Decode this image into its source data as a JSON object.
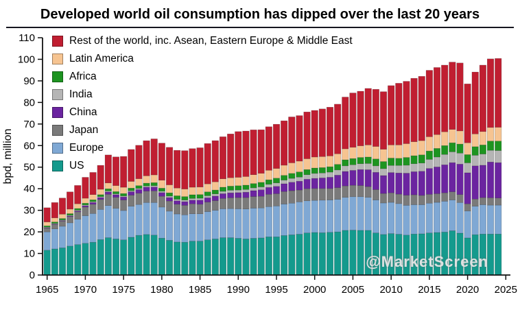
{
  "page": {
    "title": "Developed world oil consumption has dipped over the last 20 years",
    "watermark": "@MarketScreen"
  },
  "chart_data": {
    "type": "bar",
    "stacked": true,
    "title": "Developed world oil consumption has dipped over the last 20 years",
    "xlabel": "",
    "ylabel": "bpd, million",
    "ylim": [
      0,
      110
    ],
    "yticks": [
      0,
      10,
      20,
      30,
      40,
      50,
      60,
      70,
      80,
      90,
      100,
      110
    ],
    "xticks": [
      1965,
      1970,
      1975,
      1980,
      1985,
      1990,
      1995,
      2000,
      2005,
      2010,
      2015,
      2020,
      2025
    ],
    "x_range": [
      1965,
      2024
    ],
    "grid": false,
    "legend_position": "upper-left",
    "series": [
      {
        "name": "US",
        "color": "#149a8d",
        "values": [
          11.5,
          12.1,
          12.6,
          13.4,
          14.1,
          14.7,
          15.2,
          16.4,
          17.3,
          16.7,
          16.3,
          17.5,
          18.4,
          18.8,
          18.5,
          17.1,
          16.1,
          15.3,
          15.2,
          15.7,
          15.7,
          16.3,
          16.7,
          17.3,
          17.3,
          17.0,
          16.7,
          17.0,
          17.2,
          17.7,
          17.7,
          18.3,
          18.6,
          18.9,
          19.5,
          19.7,
          19.6,
          19.8,
          20.0,
          20.7,
          20.8,
          20.7,
          20.7,
          19.5,
          18.8,
          19.2,
          18.9,
          18.5,
          19.0,
          19.1,
          19.5,
          19.7,
          19.9,
          20.5,
          19.4,
          17.2,
          18.7,
          19.0,
          19.0,
          19.0
        ]
      },
      {
        "name": "Europe",
        "color": "#7fa8d4",
        "values": [
          8.5,
          9.3,
          10.0,
          10.8,
          11.8,
          12.8,
          13.3,
          14.0,
          14.9,
          14.2,
          13.6,
          14.4,
          14.3,
          14.8,
          15.1,
          14.4,
          13.5,
          13.0,
          12.7,
          12.7,
          12.7,
          13.1,
          13.3,
          13.4,
          13.5,
          13.7,
          13.9,
          14.0,
          13.9,
          14.0,
          14.3,
          14.6,
          14.7,
          15.0,
          14.9,
          14.9,
          15.1,
          15.0,
          15.1,
          15.3,
          15.5,
          15.6,
          15.3,
          15.3,
          14.6,
          14.5,
          14.2,
          13.8,
          13.6,
          13.5,
          13.8,
          14.0,
          14.3,
          14.3,
          14.2,
          12.5,
          13.2,
          13.6,
          13.4,
          13.4
        ]
      },
      {
        "name": "Japan",
        "color": "#7a7a7a",
        "values": [
          1.7,
          2.0,
          2.4,
          2.9,
          3.4,
          4.0,
          4.3,
          4.6,
          5.2,
          5.1,
          4.9,
          5.1,
          5.2,
          5.3,
          5.4,
          5.0,
          4.7,
          4.5,
          4.4,
          4.6,
          4.4,
          4.4,
          4.5,
          4.8,
          5.0,
          5.2,
          5.3,
          5.4,
          5.4,
          5.7,
          5.7,
          5.8,
          5.8,
          5.5,
          5.6,
          5.5,
          5.4,
          5.3,
          5.4,
          5.3,
          5.3,
          5.2,
          5.0,
          4.8,
          4.4,
          4.4,
          4.4,
          4.7,
          4.6,
          4.3,
          4.1,
          4.0,
          3.9,
          3.8,
          3.7,
          3.3,
          3.3,
          3.3,
          3.4,
          3.3
        ]
      },
      {
        "name": "China",
        "color": "#6b24a0",
        "values": [
          0.2,
          0.25,
          0.25,
          0.3,
          0.4,
          0.6,
          0.8,
          0.9,
          1.1,
          1.2,
          1.4,
          1.6,
          1.7,
          1.8,
          1.8,
          1.7,
          1.6,
          1.6,
          1.7,
          1.7,
          1.9,
          2.0,
          2.1,
          2.2,
          2.3,
          2.3,
          2.5,
          2.7,
          3.0,
          3.2,
          3.4,
          3.6,
          3.9,
          4.1,
          4.4,
          4.7,
          4.9,
          5.2,
          5.8,
          6.7,
          6.9,
          7.4,
          7.8,
          8.0,
          8.3,
          9.4,
          9.8,
          10.2,
          10.7,
          11.2,
          12.0,
          12.4,
          13.0,
          13.5,
          14.1,
          14.4,
          15.4,
          15.0,
          16.6,
          16.4
        ]
      },
      {
        "name": "India",
        "color": "#b5b5b5",
        "values": [
          0.3,
          0.3,
          0.3,
          0.35,
          0.38,
          0.4,
          0.42,
          0.45,
          0.47,
          0.46,
          0.48,
          0.5,
          0.54,
          0.58,
          0.62,
          0.65,
          0.7,
          0.72,
          0.76,
          0.8,
          0.9,
          0.95,
          1.0,
          1.1,
          1.2,
          1.2,
          1.25,
          1.3,
          1.35,
          1.45,
          1.6,
          1.7,
          1.8,
          1.9,
          2.1,
          2.3,
          2.3,
          2.4,
          2.4,
          2.6,
          2.6,
          2.7,
          2.9,
          3.0,
          3.2,
          3.3,
          3.5,
          3.7,
          3.7,
          3.8,
          4.2,
          4.6,
          4.8,
          5.0,
          5.1,
          4.6,
          4.9,
          5.2,
          5.4,
          5.6
        ]
      },
      {
        "name": "Africa",
        "color": "#1d9420",
        "values": [
          0.6,
          0.65,
          0.65,
          0.7,
          0.75,
          0.8,
          0.85,
          0.9,
          1.0,
          1.0,
          1.1,
          1.2,
          1.3,
          1.3,
          1.4,
          1.4,
          1.5,
          1.6,
          1.6,
          1.7,
          1.7,
          1.8,
          1.8,
          1.9,
          1.9,
          2.0,
          2.0,
          2.0,
          2.1,
          2.1,
          2.2,
          2.2,
          2.3,
          2.4,
          2.4,
          2.5,
          2.5,
          2.5,
          2.6,
          2.8,
          2.9,
          2.9,
          3.0,
          3.2,
          3.3,
          3.4,
          3.3,
          3.6,
          3.7,
          3.8,
          3.9,
          4.0,
          4.1,
          4.2,
          4.2,
          3.8,
          4.0,
          4.2,
          4.3,
          4.4
        ]
      },
      {
        "name": "Latin America",
        "color": "#f6c491",
        "values": [
          1.8,
          1.9,
          2.0,
          2.1,
          2.2,
          2.3,
          2.4,
          2.5,
          2.7,
          2.8,
          2.9,
          3.1,
          3.2,
          3.4,
          3.6,
          3.7,
          3.7,
          3.6,
          3.5,
          3.5,
          3.5,
          3.7,
          3.8,
          3.9,
          3.9,
          3.9,
          4.0,
          4.1,
          4.2,
          4.4,
          4.5,
          4.7,
          4.9,
          5.0,
          5.0,
          5.1,
          5.1,
          5.0,
          4.9,
          5.1,
          5.2,
          5.4,
          5.6,
          5.8,
          5.7,
          6.1,
          6.2,
          6.4,
          6.5,
          6.6,
          6.6,
          6.4,
          6.4,
          6.2,
          6.1,
          5.5,
          5.9,
          6.2,
          6.3,
          6.4
        ]
      },
      {
        "name": "Rest of the world, inc. Asean, Eastern Europe & Middle East",
        "color": "#c01e31",
        "values": [
          6.6,
          7.1,
          7.5,
          8.0,
          8.5,
          9.7,
          10.3,
          11.1,
          13.0,
          13.3,
          14.3,
          14.8,
          15.5,
          16.3,
          16.7,
          17.2,
          17.4,
          17.5,
          17.8,
          17.9,
          18.2,
          18.7,
          19.1,
          19.5,
          20.3,
          21.2,
          21.1,
          20.8,
          20.2,
          20.2,
          20.5,
          20.6,
          21.3,
          21.1,
          21.7,
          21.6,
          22.1,
          22.6,
          23.0,
          24.0,
          25.2,
          25.3,
          26.2,
          26.5,
          26.7,
          27.5,
          28.6,
          28.9,
          29.4,
          29.8,
          30.8,
          31.1,
          30.9,
          31.2,
          31.5,
          27.3,
          28.7,
          30.8,
          31.8,
          31.9
        ]
      }
    ]
  }
}
